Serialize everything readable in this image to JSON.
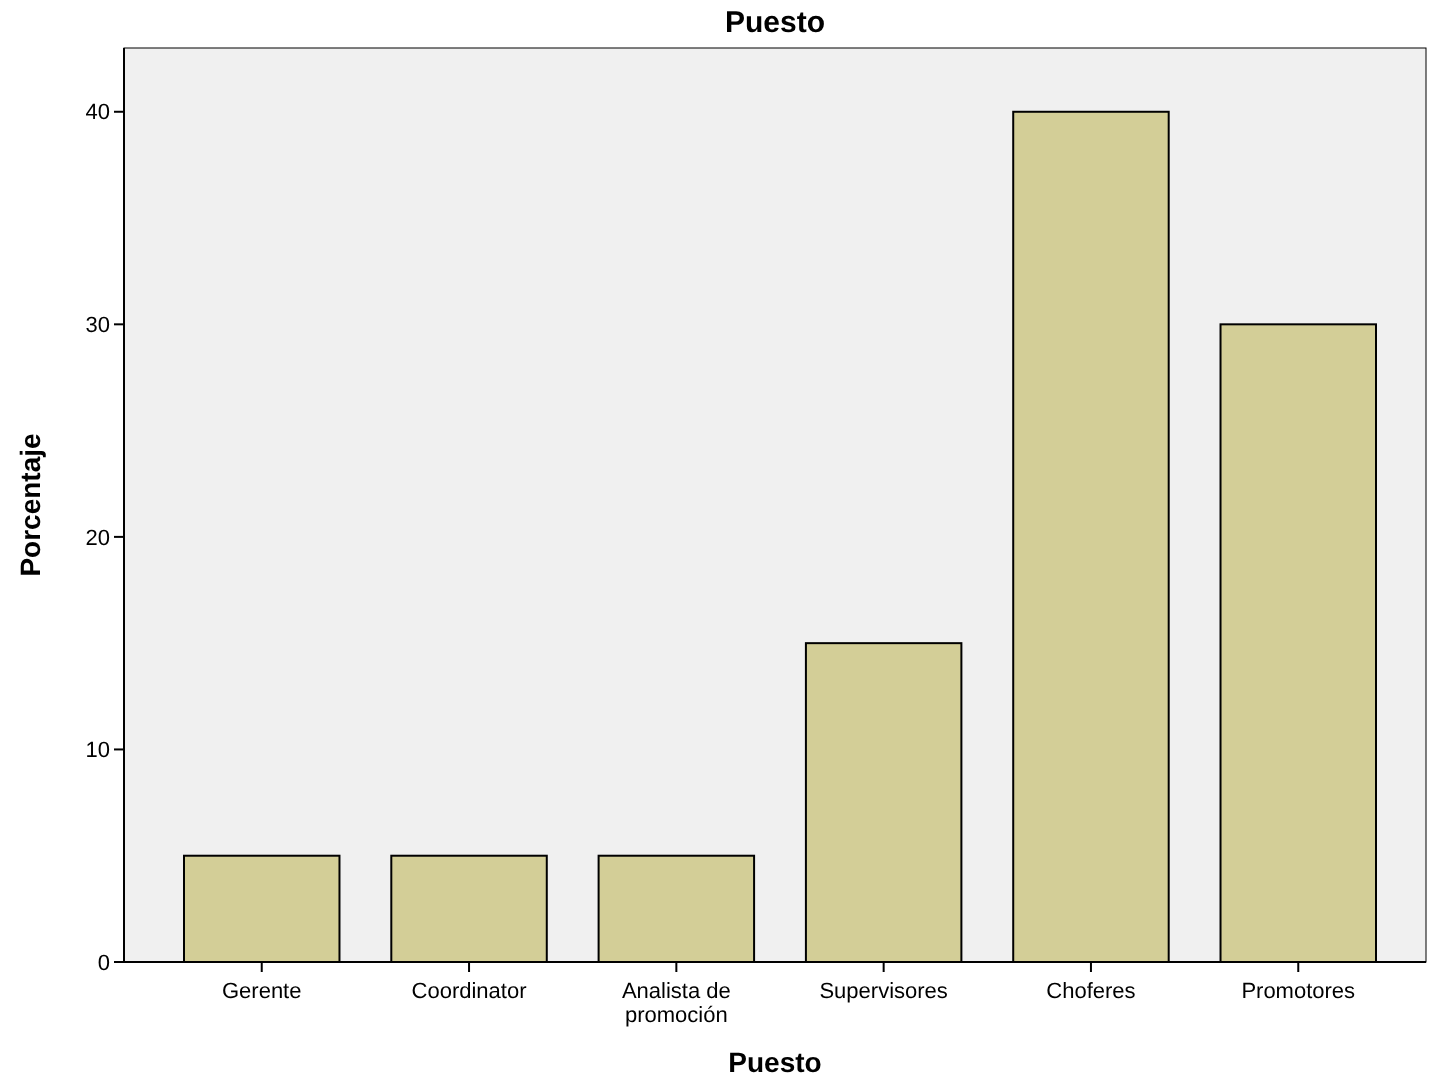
{
  "chart_data": {
    "type": "bar",
    "title": "Puesto",
    "xlabel": "Puesto",
    "ylabel": "Porcentaje",
    "categories": [
      "Gerente",
      "Coordinator",
      "Analista de promoción",
      "Supervisores",
      "Choferes",
      "Promotores"
    ],
    "values": [
      5,
      5,
      5,
      15,
      40,
      30
    ],
    "color": "#d3ce97",
    "ylim": [
      0,
      43
    ],
    "yticks": [
      0,
      10,
      20,
      30,
      40
    ],
    "grid": false
  }
}
